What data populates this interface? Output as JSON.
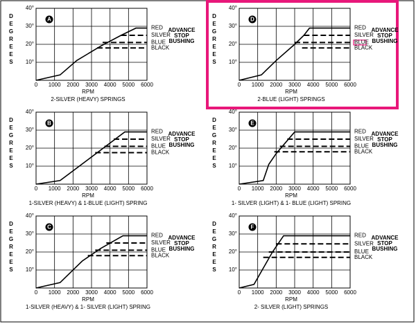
{
  "chart_data": [
    {
      "type": "line",
      "letter": "A",
      "ylabel": "DEGREES",
      "xlabel": "RPM",
      "caption": "2-SILVER (HEAVY) SPRINGS",
      "legend_title": [
        "ADVANCE",
        "STOP",
        "BUSHING"
      ],
      "xlim": [
        0,
        6000
      ],
      "xticks": [
        0,
        1000,
        2000,
        3000,
        4000,
        5000,
        6000
      ],
      "ylim": [
        0,
        40
      ],
      "yticks": [
        {
          "value": 10,
          "label": "10°"
        },
        {
          "value": 20,
          "label": "20°"
        },
        {
          "value": 30,
          "label": "30°"
        },
        {
          "value": 40,
          "label": "40°"
        }
      ],
      "grid": true,
      "series": [
        {
          "name": "RED",
          "color": "#000000",
          "linestyle": "solid",
          "x": [
            0,
            1300,
            2200,
            3500,
            4600,
            5400,
            6000
          ],
          "values": [
            0,
            3,
            11,
            19,
            25,
            29,
            29
          ]
        },
        {
          "name": "SILVER",
          "color": "#000000",
          "linestyle": "dashed",
          "x": [
            4600,
            6000
          ],
          "values": [
            25,
            25
          ]
        },
        {
          "name": "BLUE",
          "color": "#000000",
          "linestyle": "dashed",
          "x": [
            3600,
            6000
          ],
          "values": [
            21,
            21
          ]
        },
        {
          "name": "BLACK",
          "color": "#000000",
          "linestyle": "dashed",
          "x": [
            3300,
            6000
          ],
          "values": [
            18,
            18
          ]
        }
      ]
    },
    {
      "type": "line",
      "letter": "D",
      "ylabel": "DEGREES",
      "xlabel": "RPM",
      "caption": "2-BLUE (LIGHT) SPRINGS",
      "legend_title": [
        "ADVANCE",
        "STOP",
        "BUSHING"
      ],
      "highlight": true,
      "xlim": [
        0,
        6000
      ],
      "xticks": [
        0,
        1000,
        2000,
        3000,
        4000,
        5000,
        6000
      ],
      "ylim": [
        0,
        40
      ],
      "yticks": [
        {
          "value": 10,
          "label": "10°"
        },
        {
          "value": 20,
          "label": "20°"
        },
        {
          "value": 30,
          "label": "30°"
        },
        {
          "value": 40,
          "label": "40°"
        }
      ],
      "grid": true,
      "series": [
        {
          "name": "RED",
          "color": "#000000",
          "linestyle": "solid",
          "x": [
            0,
            1200,
            2000,
            3000,
            3500,
            3800,
            6000
          ],
          "values": [
            0,
            3,
            11,
            20,
            25,
            29,
            29
          ]
        },
        {
          "name": "SILVER",
          "color": "#000000",
          "linestyle": "dashed",
          "x": [
            3500,
            6000
          ],
          "values": [
            25,
            25
          ]
        },
        {
          "name": "BLUE",
          "color": "#000000",
          "linestyle": "dashed",
          "x": [
            3000,
            6000
          ],
          "values": [
            21,
            21
          ],
          "highlight": true
        },
        {
          "name": "BLACK",
          "color": "#000000",
          "linestyle": "dashed",
          "x": [
            3400,
            6000
          ],
          "values": [
            18,
            18
          ]
        }
      ]
    },
    {
      "type": "line",
      "letter": "B",
      "ylabel": "DEGREES",
      "xlabel": "RPM",
      "caption": "1-SILVER (HEAVY) & 1-BLUE (LIGHT) SPRING",
      "legend_title": [
        "ADVANCE",
        "STOP",
        "BUSHING"
      ],
      "xlim": [
        0,
        6000
      ],
      "xticks": [
        0,
        1000,
        2000,
        3000,
        4000,
        5000,
        6000
      ],
      "ylim": [
        0,
        40
      ],
      "yticks": [
        {
          "value": 10,
          "label": "10°"
        },
        {
          "value": 20,
          "label": "20°"
        },
        {
          "value": 30,
          "label": "30°"
        },
        {
          "value": 40,
          "label": "40°"
        }
      ],
      "grid": true,
      "series": [
        {
          "name": "RED",
          "color": "#000000",
          "linestyle": "solid",
          "x": [
            0,
            1300,
            4800,
            6000
          ],
          "values": [
            0,
            2,
            29,
            29
          ]
        },
        {
          "name": "SILVER",
          "color": "#000000",
          "linestyle": "dashed",
          "x": [
            4200,
            6000
          ],
          "values": [
            25,
            25
          ]
        },
        {
          "name": "BLUE",
          "color": "#000000",
          "linestyle": "dashed",
          "x": [
            3700,
            6000
          ],
          "values": [
            21,
            21
          ]
        },
        {
          "name": "BLACK",
          "color": "#000000",
          "linestyle": "dashed",
          "x": [
            3200,
            6000
          ],
          "values": [
            17.5,
            17.5
          ]
        }
      ]
    },
    {
      "type": "line",
      "letter": "E",
      "ylabel": "DEGREES",
      "xlabel": "RPM",
      "caption": "1- SILVER (LIGHT) & 1- BLUE (LIGHT) SPRING",
      "legend_title": [
        "ADVANCE",
        "STOP",
        "BUSHING"
      ],
      "xlim": [
        0,
        6000
      ],
      "xticks": [
        0,
        1000,
        2000,
        3000,
        4000,
        5000,
        6000
      ],
      "ylim": [
        0,
        40
      ],
      "yticks": [
        {
          "value": 10,
          "label": "10°"
        },
        {
          "value": 20,
          "label": "20°"
        },
        {
          "value": 30,
          "label": "30°"
        },
        {
          "value": 40,
          "label": "40°"
        }
      ],
      "grid": true,
      "series": [
        {
          "name": "RED",
          "color": "#000000",
          "linestyle": "solid",
          "x": [
            0,
            1300,
            1600,
            2000,
            2500,
            3000,
            6000
          ],
          "values": [
            0,
            2,
            11,
            17,
            23,
            29,
            29
          ]
        },
        {
          "name": "SILVER",
          "color": "#000000",
          "linestyle": "dashed",
          "x": [
            2600,
            6000
          ],
          "values": [
            25,
            25
          ]
        },
        {
          "name": "BLUE",
          "color": "#000000",
          "linestyle": "dashed",
          "x": [
            2200,
            6000
          ],
          "values": [
            21,
            21
          ]
        },
        {
          "name": "BLACK",
          "color": "#000000",
          "linestyle": "dashed",
          "x": [
            1900,
            6000
          ],
          "values": [
            18,
            18
          ]
        }
      ]
    },
    {
      "type": "line",
      "letter": "C",
      "ylabel": "DEGREES",
      "xlabel": "RPM",
      "caption": "1-SILVER (HEAVY) & 1- SILVER (LIGHT) SPRING",
      "legend_title": [
        "ADVANCE",
        "STOP",
        "BUSHING"
      ],
      "xlim": [
        0,
        6000
      ],
      "xticks": [
        0,
        1000,
        2000,
        3000,
        4000,
        5000,
        6000
      ],
      "ylim": [
        0,
        40
      ],
      "yticks": [
        {
          "value": 10,
          "label": "10°"
        },
        {
          "value": 20,
          "label": "20°"
        },
        {
          "value": 30,
          "label": "30°"
        },
        {
          "value": 40,
          "label": "40°"
        }
      ],
      "grid": true,
      "series": [
        {
          "name": "RED",
          "color": "#000000",
          "linestyle": "solid",
          "x": [
            0,
            1300,
            2500,
            3500,
            4700,
            6000
          ],
          "values": [
            0,
            3,
            15,
            22,
            29,
            29
          ]
        },
        {
          "name": "SILVER",
          "color": "#000000",
          "linestyle": "dashed",
          "x": [
            3800,
            6000
          ],
          "values": [
            25,
            25
          ]
        },
        {
          "name": "BLUE",
          "color": "#000000",
          "linestyle": "dashed",
          "x": [
            3200,
            6000
          ],
          "values": [
            21,
            21
          ]
        },
        {
          "name": "BLACK",
          "color": "#000000",
          "linestyle": "dashed",
          "x": [
            2800,
            6000
          ],
          "values": [
            18,
            18
          ]
        }
      ]
    },
    {
      "type": "line",
      "letter": "F",
      "ylabel": "DEGREES",
      "xlabel": "RPM",
      "caption": "2- SILVER (LIGHT) SPRINGS",
      "legend_title": [
        "ADVANCE",
        "STOP",
        "BUSHING"
      ],
      "xlim": [
        0,
        6000
      ],
      "xticks": [
        0,
        1000,
        2000,
        3000,
        4000,
        5000,
        6000
      ],
      "ylim": [
        0,
        40
      ],
      "yticks": [
        {
          "value": 10,
          "label": "10°"
        },
        {
          "value": 20,
          "label": "20°"
        },
        {
          "value": 30,
          "label": "30°"
        },
        {
          "value": 40,
          "label": "40°"
        }
      ],
      "grid": true,
      "series": [
        {
          "name": "RED",
          "color": "#000000",
          "linestyle": "solid",
          "x": [
            0,
            800,
            1300,
            1800,
            2400,
            6000
          ],
          "values": [
            0,
            2,
            11,
            20,
            29,
            29
          ]
        },
        {
          "name": "SILVER",
          "color": "#000000",
          "linestyle": "dashed",
          "x": [
            2000,
            6000
          ],
          "values": [
            24.5,
            24.5
          ]
        },
        {
          "name": "BLUE",
          "color": "#000000",
          "linestyle": "dashed",
          "x": [
            1600,
            6000
          ],
          "values": [
            20,
            20
          ]
        },
        {
          "name": "BLACK",
          "color": "#000000",
          "linestyle": "dashed",
          "x": [
            1300,
            6000
          ],
          "values": [
            17,
            17
          ]
        }
      ]
    }
  ]
}
